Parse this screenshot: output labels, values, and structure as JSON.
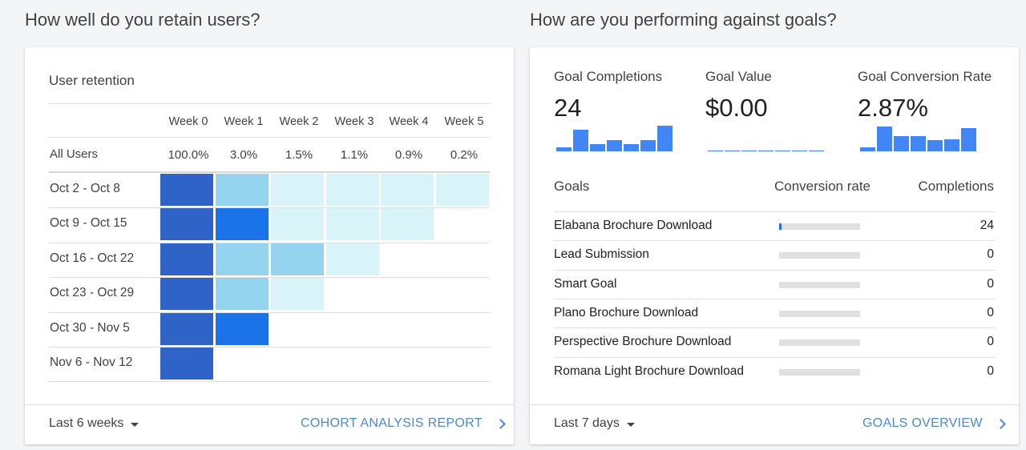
{
  "retention_section": {
    "title": "How well do you retain users?",
    "card_title": "User retention",
    "weeks": [
      "Week 0",
      "Week 1",
      "Week 2",
      "Week 3",
      "Week 4",
      "Week 5"
    ],
    "all_users": {
      "label": "All Users",
      "values": [
        "100.0%",
        "3.0%",
        "1.5%",
        "1.1%",
        "0.9%",
        "0.2%"
      ]
    },
    "cohorts": [
      {
        "label": "Oct 2 - Oct 8",
        "shades": [
          "#3063c8",
          "#95d4ee",
          "#d9f4f8",
          "#d9f4f8",
          "#d9f4f8",
          "#d9f4f8"
        ]
      },
      {
        "label": "Oct 9 - Oct 15",
        "shades": [
          "#3063c8",
          "#1a73e8",
          "#d9f4f8",
          "#d9f4f8",
          "#d9f4f8"
        ]
      },
      {
        "label": "Oct 16 - Oct 22",
        "shades": [
          "#3063c8",
          "#95d4ee",
          "#95d4ee",
          "#d9f4f8"
        ]
      },
      {
        "label": "Oct 23 - Oct 29",
        "shades": [
          "#3063c8",
          "#95d4ee",
          "#d9f4f8"
        ]
      },
      {
        "label": "Oct 30 - Nov 5",
        "shades": [
          "#3063c8",
          "#1a73e8"
        ]
      },
      {
        "label": "Nov 6 - Nov 12",
        "shades": [
          "#3063c8"
        ]
      }
    ],
    "footer": {
      "range": "Last 6 weeks",
      "link": "COHORT ANALYSIS REPORT"
    }
  },
  "goals_section": {
    "title": "How are you performing against goals?",
    "metrics": [
      {
        "label": "Goal Completions",
        "value": "24",
        "spark": [
          0.15,
          0.8,
          0.25,
          0.4,
          0.25,
          0.4,
          0.95
        ]
      },
      {
        "label": "Goal Value",
        "value": "$0.00",
        "spark": [
          0,
          0,
          0,
          0,
          0,
          0,
          0
        ]
      },
      {
        "label": "Goal Conversion Rate",
        "value": "2.87%",
        "spark": [
          0.15,
          0.9,
          0.55,
          0.55,
          0.4,
          0.45,
          0.85
        ]
      }
    ],
    "table": {
      "headers": {
        "goal": "Goals",
        "rate": "Conversion rate",
        "completions": "Completions"
      },
      "rows": [
        {
          "name": "Elabana Brochure Download",
          "rate_fraction": 0.03,
          "completions": "24"
        },
        {
          "name": "Lead Submission",
          "rate_fraction": 0,
          "completions": "0"
        },
        {
          "name": "Smart Goal",
          "rate_fraction": 0,
          "completions": "0"
        },
        {
          "name": "Plano Brochure Download",
          "rate_fraction": 0,
          "completions": "0"
        },
        {
          "name": "Perspective Brochure Download",
          "rate_fraction": 0,
          "completions": "0"
        },
        {
          "name": "Romana Light Brochure Download",
          "rate_fraction": 0,
          "completions": "0"
        }
      ]
    },
    "footer": {
      "range": "Last 7 days",
      "link": "GOALS OVERVIEW"
    }
  },
  "colors": {
    "accent": "#4285f4",
    "link": "#4a88d8",
    "cohort_dark": "#3063c8"
  }
}
